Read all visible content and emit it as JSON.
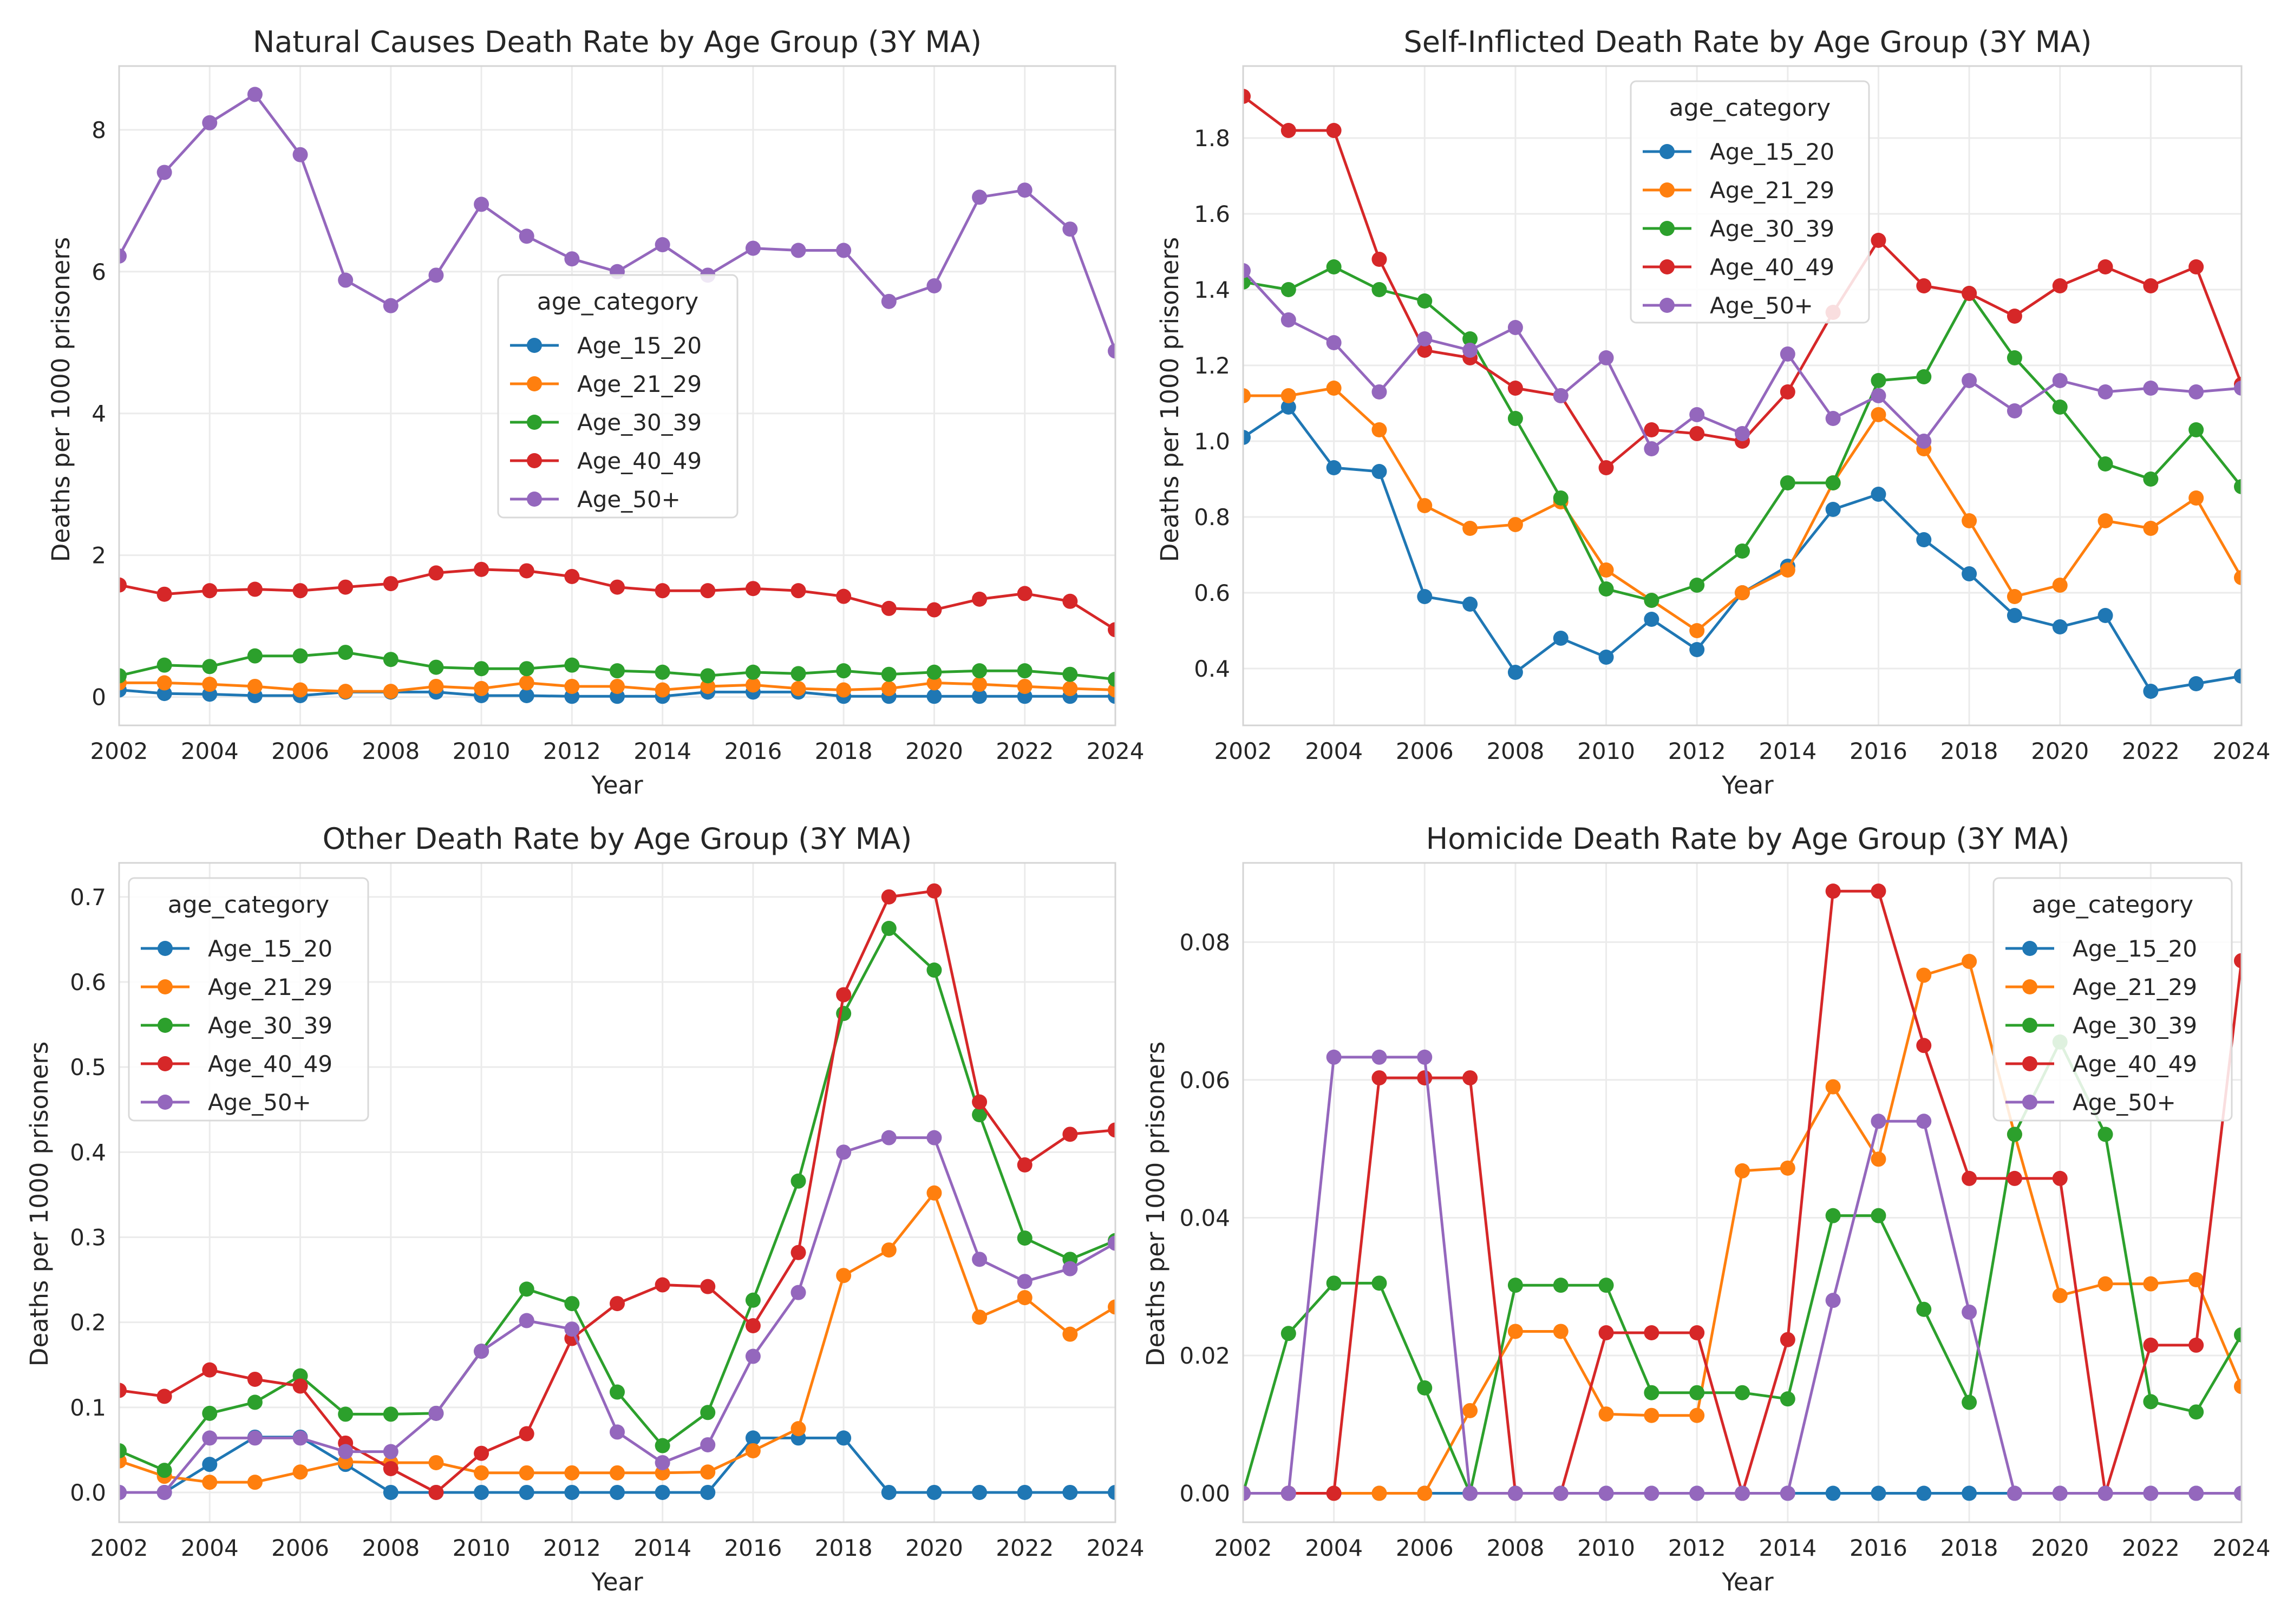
{
  "series_colors": {
    "Age_15_20": "#1f77b4",
    "Age_21_29": "#ff7f0e",
    "Age_30_39": "#2ca02c",
    "Age_40_49": "#d62728",
    "Age_50+": "#9467bd"
  },
  "chart_data": [
    {
      "type": "line",
      "title": "Natural Causes Death Rate by Age Group (3Y MA)",
      "xlabel": "Year",
      "ylabel": "Deaths per 1000 prisoners",
      "xlim": [
        2002,
        2024
      ],
      "ylim": [
        -0.4,
        8.9
      ],
      "xticks": [
        "2002",
        "2004",
        "2006",
        "2008",
        "2010",
        "2012",
        "2014",
        "2016",
        "2018",
        "2020",
        "2022",
        "2024"
      ],
      "yticks": [
        "0",
        "2",
        "4",
        "6",
        "8"
      ],
      "legend_title": "age_category",
      "legend_position": "center",
      "x": [
        2002,
        2003,
        2004,
        2005,
        2006,
        2007,
        2008,
        2009,
        2010,
        2011,
        2012,
        2013,
        2014,
        2015,
        2016,
        2017,
        2018,
        2019,
        2020,
        2021,
        2022,
        2023,
        2024
      ],
      "series": [
        {
          "name": "Age_15_20",
          "values": [
            0.1,
            0.05,
            0.04,
            0.02,
            0.02,
            0.07,
            0.07,
            0.07,
            0.02,
            0.02,
            0.01,
            0.01,
            0.01,
            0.07,
            0.07,
            0.07,
            0.01,
            0.01,
            0.01,
            0.01,
            0.01,
            0.01,
            0.01
          ]
        },
        {
          "name": "Age_21_29",
          "values": [
            0.2,
            0.2,
            0.18,
            0.15,
            0.1,
            0.08,
            0.08,
            0.15,
            0.12,
            0.2,
            0.15,
            0.15,
            0.1,
            0.15,
            0.17,
            0.12,
            0.1,
            0.12,
            0.2,
            0.18,
            0.15,
            0.12,
            0.1
          ]
        },
        {
          "name": "Age_30_39",
          "values": [
            0.3,
            0.45,
            0.43,
            0.58,
            0.58,
            0.63,
            0.53,
            0.42,
            0.4,
            0.4,
            0.45,
            0.37,
            0.35,
            0.3,
            0.35,
            0.33,
            0.37,
            0.32,
            0.35,
            0.37,
            0.37,
            0.32,
            0.25
          ]
        },
        {
          "name": "Age_40_49",
          "values": [
            1.58,
            1.45,
            1.5,
            1.52,
            1.5,
            1.55,
            1.6,
            1.75,
            1.8,
            1.78,
            1.7,
            1.55,
            1.5,
            1.5,
            1.53,
            1.5,
            1.42,
            1.25,
            1.23,
            1.38,
            1.46,
            1.35,
            0.95
          ]
        },
        {
          "name": "Age_50+",
          "values": [
            6.22,
            7.4,
            8.1,
            8.5,
            7.65,
            5.88,
            5.52,
            5.95,
            6.95,
            6.5,
            6.18,
            6.0,
            6.38,
            5.95,
            6.33,
            6.3,
            6.3,
            5.58,
            5.8,
            7.05,
            7.15,
            6.6,
            4.88
          ]
        }
      ]
    },
    {
      "type": "line",
      "title": "Self-Inflicted Death Rate by Age Group (3Y MA)",
      "xlabel": "Year",
      "ylabel": "Deaths per 1000 prisoners",
      "xlim": [
        2002,
        2024
      ],
      "ylim": [
        0.25,
        1.99
      ],
      "xticks": [
        "2002",
        "2004",
        "2006",
        "2008",
        "2010",
        "2012",
        "2014",
        "2016",
        "2018",
        "2020",
        "2022",
        "2024"
      ],
      "yticks": [
        "0.4",
        "0.6",
        "0.8",
        "1.0",
        "1.2",
        "1.4",
        "1.6",
        "1.8"
      ],
      "legend_title": "age_category",
      "legend_position": "upper center",
      "x": [
        2002,
        2003,
        2004,
        2005,
        2006,
        2007,
        2008,
        2009,
        2010,
        2011,
        2012,
        2013,
        2014,
        2015,
        2016,
        2017,
        2018,
        2019,
        2020,
        2021,
        2022,
        2023,
        2024
      ],
      "series": [
        {
          "name": "Age_15_20",
          "values": [
            1.01,
            1.09,
            0.93,
            0.92,
            0.59,
            0.57,
            0.39,
            0.48,
            0.43,
            0.53,
            0.45,
            0.6,
            0.67,
            0.82,
            0.86,
            0.74,
            0.65,
            0.54,
            0.51,
            0.54,
            0.34,
            0.36,
            0.38
          ]
        },
        {
          "name": "Age_21_29",
          "values": [
            1.12,
            1.12,
            1.14,
            1.03,
            0.83,
            0.77,
            0.78,
            0.84,
            0.66,
            0.58,
            0.5,
            0.6,
            0.66,
            0.89,
            1.07,
            0.98,
            0.79,
            0.59,
            0.62,
            0.79,
            0.77,
            0.85,
            0.64
          ]
        },
        {
          "name": "Age_30_39",
          "values": [
            1.42,
            1.4,
            1.46,
            1.4,
            1.37,
            1.27,
            1.06,
            0.85,
            0.61,
            0.58,
            0.62,
            0.71,
            0.89,
            0.89,
            1.16,
            1.17,
            1.39,
            1.22,
            1.09,
            0.94,
            0.9,
            1.03,
            0.88
          ]
        },
        {
          "name": "Age_40_49",
          "values": [
            1.91,
            1.82,
            1.82,
            1.48,
            1.24,
            1.22,
            1.14,
            1.12,
            0.93,
            1.03,
            1.02,
            1.0,
            1.13,
            1.34,
            1.53,
            1.41,
            1.39,
            1.33,
            1.41,
            1.46,
            1.41,
            1.46,
            1.15
          ]
        },
        {
          "name": "Age_50+",
          "values": [
            1.45,
            1.32,
            1.26,
            1.13,
            1.27,
            1.24,
            1.3,
            1.12,
            1.22,
            0.98,
            1.07,
            1.02,
            1.23,
            1.06,
            1.12,
            1.0,
            1.16,
            1.08,
            1.16,
            1.13,
            1.14,
            1.13,
            1.14
          ]
        }
      ]
    },
    {
      "type": "line",
      "title": "Other Death Rate by Age Group (3Y MA)",
      "xlabel": "Year",
      "ylabel": "Deaths per 1000 prisoners",
      "xlim": [
        2002,
        2024
      ],
      "ylim": [
        -0.035,
        0.74
      ],
      "xticks": [
        "2002",
        "2004",
        "2006",
        "2008",
        "2010",
        "2012",
        "2014",
        "2016",
        "2018",
        "2020",
        "2022",
        "2024"
      ],
      "yticks": [
        "0.0",
        "0.1",
        "0.2",
        "0.3",
        "0.4",
        "0.5",
        "0.6",
        "0.7"
      ],
      "legend_title": "age_category",
      "legend_position": "upper left",
      "x": [
        2002,
        2003,
        2004,
        2005,
        2006,
        2007,
        2008,
        2009,
        2010,
        2011,
        2012,
        2013,
        2014,
        2015,
        2016,
        2017,
        2018,
        2019,
        2020,
        2021,
        2022,
        2023,
        2024
      ],
      "series": [
        {
          "name": "Age_15_20",
          "values": [
            0,
            0,
            0.033,
            0.065,
            0.065,
            0.033,
            0,
            0,
            0,
            0,
            0,
            0,
            0,
            0,
            0.064,
            0.064,
            0.064,
            0,
            0,
            0,
            0,
            0,
            0
          ]
        },
        {
          "name": "Age_21_29",
          "values": [
            0.037,
            0.019,
            0.012,
            0.012,
            0.024,
            0.036,
            0.035,
            0.035,
            0.023,
            0.023,
            0.023,
            0.023,
            0.023,
            0.024,
            0.049,
            0.075,
            0.255,
            0.285,
            0.352,
            0.206,
            0.229,
            0.186,
            0.218
          ]
        },
        {
          "name": "Age_30_39",
          "values": [
            0.049,
            0.026,
            0.093,
            0.106,
            0.137,
            0.092,
            0.092,
            0.093,
            0.166,
            0.239,
            0.222,
            0.118,
            0.055,
            0.094,
            0.226,
            0.366,
            0.563,
            0.663,
            0.614,
            0.444,
            0.299,
            0.274,
            0.296
          ]
        },
        {
          "name": "Age_40_49",
          "values": [
            0.12,
            0.113,
            0.144,
            0.133,
            0.125,
            0.058,
            0.028,
            0,
            0.046,
            0.069,
            0.181,
            0.222,
            0.244,
            0.242,
            0.196,
            0.282,
            0.585,
            0.7,
            0.707,
            0.459,
            0.385,
            0.421,
            0.426
          ]
        },
        {
          "name": "Age_50+",
          "values": [
            0,
            0,
            0.064,
            0.064,
            0.064,
            0.048,
            0.048,
            0.093,
            0.166,
            0.202,
            0.192,
            0.071,
            0.035,
            0.056,
            0.16,
            0.235,
            0.4,
            0.417,
            0.417,
            0.274,
            0.248,
            0.263,
            0.293
          ]
        }
      ]
    },
    {
      "type": "line",
      "title": "Homicide Death Rate by Age Group (3Y MA)",
      "xlabel": "Year",
      "ylabel": "Deaths per 1000 prisoners",
      "xlim": [
        2002,
        2024
      ],
      "ylim": [
        -0.0042,
        0.0915
      ],
      "xticks": [
        "2002",
        "2004",
        "2006",
        "2008",
        "2010",
        "2012",
        "2014",
        "2016",
        "2018",
        "2020",
        "2022",
        "2024"
      ],
      "yticks": [
        "0.00",
        "0.02",
        "0.04",
        "0.06",
        "0.08"
      ],
      "legend_title": "age_category",
      "legend_position": "upper right",
      "x": [
        2002,
        2003,
        2004,
        2005,
        2006,
        2007,
        2008,
        2009,
        2010,
        2011,
        2012,
        2013,
        2014,
        2015,
        2016,
        2017,
        2018,
        2019,
        2020,
        2021,
        2022,
        2023,
        2024
      ],
      "series": [
        {
          "name": "Age_15_20",
          "values": [
            0,
            0,
            0,
            0,
            0,
            0,
            0,
            0,
            0,
            0,
            0,
            0,
            0,
            0,
            0,
            0,
            0,
            0,
            0,
            0,
            0,
            0,
            0
          ]
        },
        {
          "name": "Age_21_29",
          "values": [
            0,
            0,
            0,
            0,
            0,
            0.012,
            0.0235,
            0.0235,
            0.0115,
            0.0113,
            0.0113,
            0.0468,
            0.0472,
            0.059,
            0.0485,
            0.0752,
            0.0772,
            0.0521,
            0.0287,
            0.0304,
            0.0304,
            0.031,
            0.0155
          ]
        },
        {
          "name": "Age_30_39",
          "values": [
            0,
            0.0232,
            0.0305,
            0.0305,
            0.0153,
            0,
            0.0302,
            0.0302,
            0.0302,
            0.0146,
            0.0146,
            0.0146,
            0.0137,
            0.0403,
            0.0403,
            0.0267,
            0.0132,
            0.0521,
            0.0655,
            0.0521,
            0.0133,
            0.0118,
            0.023
          ]
        },
        {
          "name": "Age_40_49",
          "values": [
            0,
            0,
            0,
            0.0603,
            0.0603,
            0.0603,
            0,
            0,
            0.0233,
            0.0233,
            0.0233,
            0,
            0.0223,
            0.0874,
            0.0874,
            0.065,
            0.0457,
            0.0457,
            0.0457,
            0,
            0.0215,
            0.0215,
            0.0773
          ]
        },
        {
          "name": "Age_50+",
          "values": [
            0,
            0,
            0.0633,
            0.0633,
            0.0633,
            0,
            0,
            0,
            0,
            0,
            0,
            0,
            0,
            0.028,
            0.054,
            0.054,
            0.0263,
            0,
            0,
            0,
            0,
            0,
            0
          ]
        }
      ]
    }
  ]
}
